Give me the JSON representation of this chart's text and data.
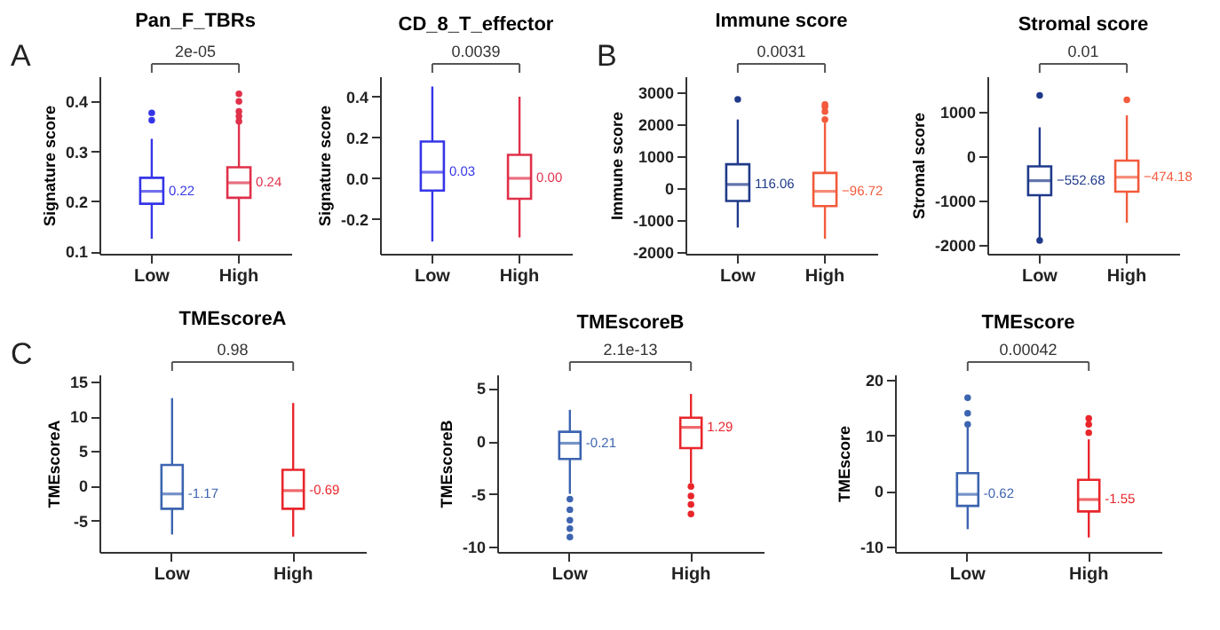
{
  "chart_data": [
    {
      "type": "box",
      "title": "Pan_F_TBRs",
      "ylabel": "Signature score",
      "categories": [
        "Low",
        "High"
      ],
      "colors": [
        "#3535e8",
        "#e0304a"
      ],
      "ylim": [
        0.095,
        0.45
      ],
      "yticks": [
        0.1,
        0.2,
        0.3,
        0.4
      ],
      "annotations": [
        "2e-05",
        "A"
      ],
      "value_labels": [
        "0.22",
        "0.24"
      ],
      "grid": false,
      "boxes": [
        {
          "low": 0.125,
          "q1": 0.195,
          "median": 0.22,
          "q3": 0.247,
          "high": 0.325,
          "outliers": [
            0.362,
            0.377
          ]
        },
        {
          "low": 0.12,
          "q1": 0.207,
          "median": 0.237,
          "q3": 0.268,
          "high": 0.355,
          "outliers": [
            0.36,
            0.37,
            0.38,
            0.4,
            0.415
          ]
        }
      ]
    },
    {
      "type": "box",
      "title": "CD_8_T_effector",
      "ylabel": "Signature score",
      "categories": [
        "Low",
        "High"
      ],
      "colors": [
        "#3535e8",
        "#e0304a"
      ],
      "ylim": [
        -0.37,
        0.5
      ],
      "yticks": [
        -0.2,
        {
          "value": 0,
          "label": "0.0"
        },
        0.2,
        0.4
      ],
      "annotations": [
        "0.0039"
      ],
      "value_labels": [
        "0.03",
        "0.00"
      ],
      "grid": false,
      "boxes": [
        {
          "low": -0.31,
          "q1": -0.06,
          "median": 0.03,
          "q3": 0.18,
          "high": 0.45
        },
        {
          "low": -0.29,
          "q1": -0.1,
          "median": 0.0,
          "q3": 0.115,
          "high": 0.4
        }
      ]
    },
    {
      "type": "box",
      "title": "Immune score",
      "ylabel": "Immune score",
      "categories": [
        "Low",
        "High"
      ],
      "colors": [
        "#1f3a8a",
        "#f25a3c"
      ],
      "ylim": [
        -2050,
        3500
      ],
      "yticks": [
        -2000,
        -1000,
        0,
        1000,
        2000,
        3000
      ],
      "annotations": [
        "0.0031",
        "B"
      ],
      "value_labels": [
        "116.06",
        "−96.72"
      ],
      "grid": false,
      "boxes": [
        {
          "low": -1230,
          "q1": -400,
          "median": 116.06,
          "q3": 750,
          "high": 2150,
          "outliers": [
            2780
          ]
        },
        {
          "low": -1580,
          "q1": -560,
          "median": -96.72,
          "q3": 480,
          "high": 2050,
          "outliers": [
            2150,
            2400,
            2550,
            2620
          ]
        }
      ]
    },
    {
      "type": "box",
      "title": "Stromal score",
      "ylabel": "Stromal score",
      "categories": [
        "Low",
        "High"
      ],
      "colors": [
        "#1f3a8a",
        "#f25a3c"
      ],
      "ylim": [
        -2200,
        1800
      ],
      "yticks": [
        -2000,
        -1000,
        0,
        1000
      ],
      "annotations": [
        "0.01"
      ],
      "value_labels": [
        "−552.68",
        "−474.18"
      ],
      "grid": false,
      "boxes": [
        {
          "low": -1850,
          "q1": -880,
          "median": -552.68,
          "q3": -230,
          "high": 650,
          "outliers": [
            1370,
            -1900
          ]
        },
        {
          "low": -1500,
          "q1": -800,
          "median": -474.18,
          "q3": -100,
          "high": 920,
          "outliers": [
            1270
          ]
        }
      ]
    },
    {
      "type": "box",
      "title": "TMEscoreA",
      "ylabel": "TMEscoreA",
      "categories": [
        "Low",
        "High"
      ],
      "colors": [
        "#3c64b0",
        "#e8262b"
      ],
      "ylim": [
        -9.5,
        16
      ],
      "yticks": [
        -5,
        0,
        5,
        10,
        15
      ],
      "annotations": [
        "0.98",
        "C"
      ],
      "value_labels": [
        "-1.17",
        "-0.69"
      ],
      "grid": false,
      "boxes": [
        {
          "low": -7.0,
          "q1": -3.3,
          "median": -1.17,
          "q3": 3.0,
          "high": 12.6
        },
        {
          "low": -7.3,
          "q1": -3.3,
          "median": -0.69,
          "q3": 2.3,
          "high": 11.9
        }
      ]
    },
    {
      "type": "box",
      "title": "TMEscoreB",
      "ylabel": "TMEscoreB",
      "categories": [
        "Low",
        "High"
      ],
      "colors": [
        "#3c64b0",
        "#e8262b"
      ],
      "ylim": [
        -10.5,
        6.3
      ],
      "yticks": [
        -10,
        -5,
        0,
        5
      ],
      "annotations": [
        "2.1e-13"
      ],
      "value_labels": [
        "-0.21",
        "1.29"
      ],
      "grid": false,
      "boxes": [
        {
          "low": -5.0,
          "q1": -1.7,
          "median": -0.21,
          "q3": 0.87,
          "high": 2.95,
          "outliers": [
            -5.5,
            -6.5,
            -7.5,
            -8.3,
            -9.1
          ]
        },
        {
          "low": -4.0,
          "q1": -0.67,
          "median": 1.29,
          "q3": 2.2,
          "high": 4.45,
          "outliers": [
            -4.3,
            -5.2,
            -6.0,
            -6.9
          ]
        }
      ]
    },
    {
      "type": "box",
      "title": "TMEscore",
      "ylabel": "TMEscore",
      "categories": [
        "Low",
        "High"
      ],
      "colors": [
        "#3c64b0",
        "#e8262b"
      ],
      "ylim": [
        -11,
        21
      ],
      "yticks": [
        -10,
        0,
        10,
        20
      ],
      "annotations": [
        "0.00042"
      ],
      "value_labels": [
        "-0.62",
        "-1.55"
      ],
      "grid": false,
      "boxes": [
        {
          "low": -6.9,
          "q1": -2.7,
          "median": -0.62,
          "q3": 3.2,
          "high": 11.5,
          "outliers": [
            12.0,
            14.0,
            16.8
          ]
        },
        {
          "low": -8.4,
          "q1": -3.7,
          "median": -1.55,
          "q3": 2.0,
          "high": 9.3,
          "outliers": [
            10.5,
            12.0,
            13.1
          ]
        }
      ]
    }
  ]
}
